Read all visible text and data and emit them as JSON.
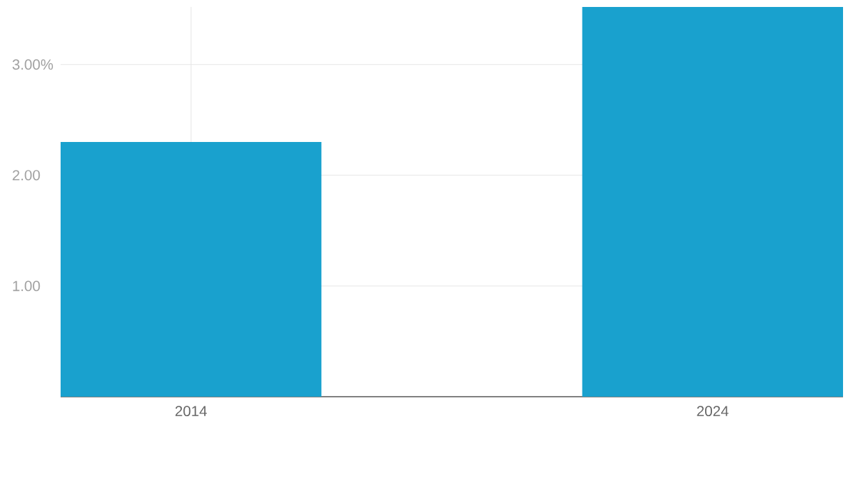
{
  "chart_data": {
    "type": "bar",
    "categories": [
      "2014",
      "2024"
    ],
    "values": [
      2.3,
      3.52
    ],
    "color": "#19a1ce",
    "ylim": [
      0,
      3.52
    ],
    "yticks": [
      {
        "value": 1,
        "label": "1.00"
      },
      {
        "value": 2,
        "label": "2.00"
      },
      {
        "value": 3,
        "label": "3.00%"
      }
    ],
    "grid": true
  }
}
